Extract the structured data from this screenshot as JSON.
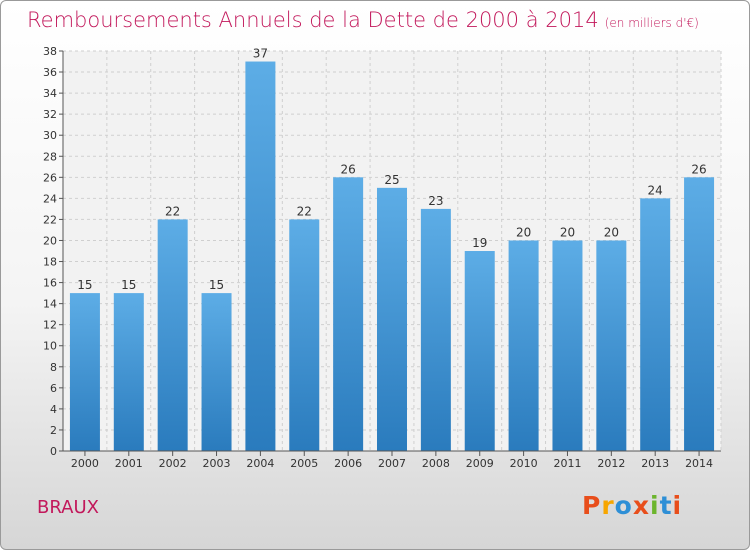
{
  "chart_data": {
    "type": "bar",
    "title": "Remboursements Annuels de la Dette de 2000 à 2014",
    "unit": "(en milliers d'€)",
    "categories": [
      "2000",
      "2001",
      "2002",
      "2003",
      "2004",
      "2005",
      "2006",
      "2007",
      "2008",
      "2009",
      "2010",
      "2011",
      "2012",
      "2013",
      "2014"
    ],
    "values": [
      15,
      15,
      22,
      15,
      37,
      22,
      26,
      25,
      23,
      19,
      20,
      20,
      20,
      24,
      26
    ],
    "ylim": [
      0,
      38
    ],
    "yticks": [
      0,
      2,
      4,
      6,
      8,
      10,
      12,
      14,
      16,
      18,
      20,
      22,
      24,
      26,
      28,
      30,
      32,
      34,
      36,
      38
    ],
    "grid": true,
    "bar_color_top": "#5dade6",
    "bar_color_bottom": "#2a7bbd"
  },
  "footer": {
    "town": "BRAUX",
    "logo": "Proxiti"
  },
  "colors": {
    "title": "#c2185b",
    "logo": [
      "#e84e1b",
      "#f7a600",
      "#2e8fd6",
      "#e84e1b",
      "#6cb52d",
      "#2e8fd6",
      "#e84e1b"
    ]
  }
}
